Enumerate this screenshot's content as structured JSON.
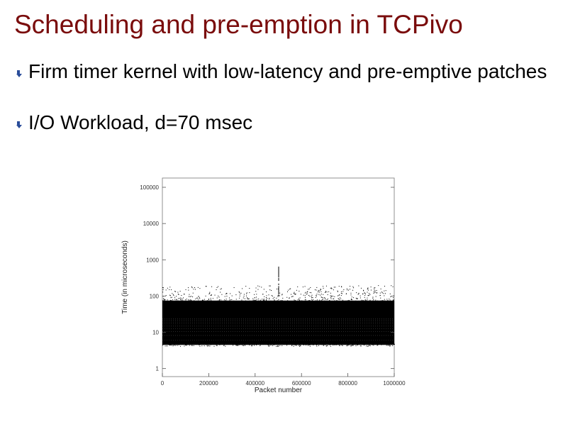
{
  "slide": {
    "title": "Scheduling and pre-emption in TCPivo",
    "bullets": [
      "Firm timer kernel with low-latency and pre-emptive patches",
      "I/O Workload, d=70 msec"
    ]
  },
  "colors": {
    "title": "#7a0c0c",
    "bullet_arrow": "#2a4d9a",
    "plot": "#000000"
  },
  "chart_data": {
    "type": "scatter",
    "title": "",
    "xlabel": "Packet number",
    "ylabel": "Time (in microseconds)",
    "x_ticks": [
      "0",
      "200000",
      "400000",
      "600000",
      "800000",
      "1000000"
    ],
    "y_ticks": [
      "1",
      "10",
      "100",
      "1000",
      "10000",
      "100000"
    ],
    "xlim": [
      0,
      1000000
    ],
    "ylim": [
      0.6,
      180000
    ],
    "y_scale": "log",
    "grid": false,
    "series": [
      {
        "band": "dense",
        "x_range": [
          0,
          1000000
        ],
        "y_range": [
          4.5,
          75
        ]
      },
      {
        "band": "sparse-upper",
        "x_range": [
          0,
          1000000
        ],
        "y_range": [
          75,
          200
        ]
      },
      {
        "band": "spike",
        "x": 500000,
        "y_range": [
          100,
          700
        ]
      }
    ]
  }
}
